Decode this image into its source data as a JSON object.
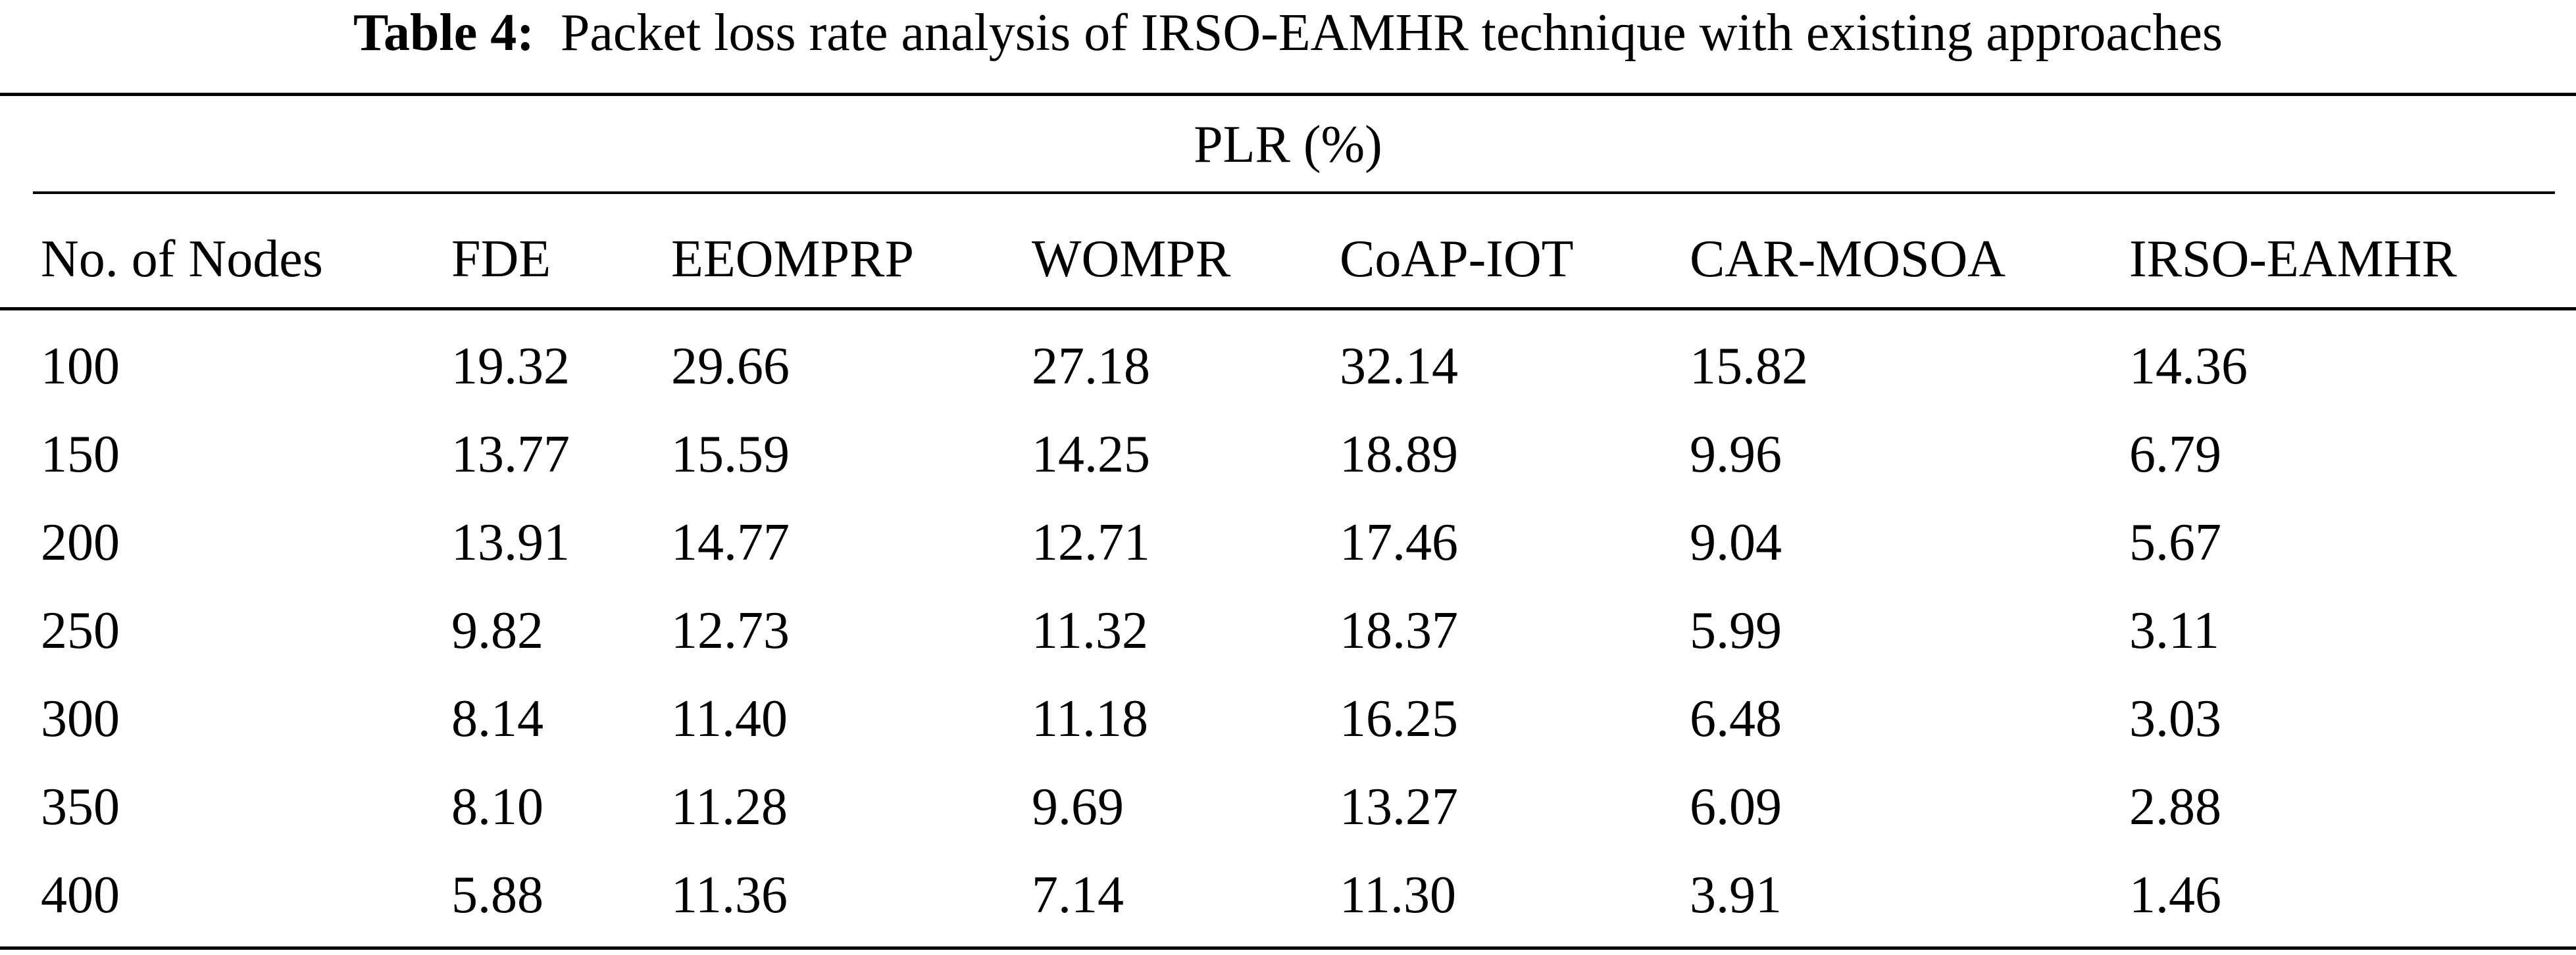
{
  "caption": {
    "label": "Table 4:",
    "text": "Packet loss rate analysis of IRSO-EAMHR technique with existing approaches"
  },
  "table": {
    "group_header": "PLR (%)",
    "columns": [
      "No. of Nodes",
      "FDE",
      "EEOMPRP",
      "WOMPR",
      "CoAP-IOT",
      "CAR-MOSOA",
      "IRSO-EAMHR"
    ],
    "rows": [
      [
        "100",
        "19.32",
        "29.66",
        "27.18",
        "32.14",
        "15.82",
        "14.36"
      ],
      [
        "150",
        "13.77",
        "15.59",
        "14.25",
        "18.89",
        "9.96",
        "6.79"
      ],
      [
        "200",
        "13.91",
        "14.77",
        "12.71",
        "17.46",
        "9.04",
        "5.67"
      ],
      [
        "250",
        "9.82",
        "12.73",
        "11.32",
        "18.37",
        "5.99",
        "3.11"
      ],
      [
        "300",
        "8.14",
        "11.40",
        "11.18",
        "16.25",
        "6.48",
        "3.03"
      ],
      [
        "350",
        "8.10",
        "11.28",
        "9.69",
        "13.27",
        "6.09",
        "2.88"
      ],
      [
        "400",
        "5.88",
        "11.36",
        "7.14",
        "11.30",
        "3.91",
        "1.46"
      ]
    ]
  }
}
